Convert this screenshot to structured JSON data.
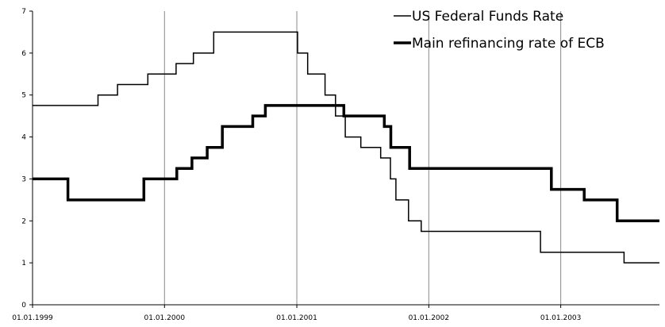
{
  "chart_data": {
    "type": "line",
    "step": true,
    "title": "",
    "xlabel": "",
    "ylabel": "",
    "x_ticks": [
      "01.01.1999",
      "01.01.2000",
      "01.01.2001",
      "01.01.2002",
      "01.01.2003"
    ],
    "y_ticks": [
      "0",
      "1",
      "2",
      "3",
      "4",
      "5",
      "6",
      "7"
    ],
    "ylim": [
      0,
      7
    ],
    "xlim": [
      "1999-01-01",
      "2003-10-01"
    ],
    "grid": {
      "vertical": true,
      "horizontal": false
    },
    "legend_position": "top-right",
    "series": [
      {
        "name": "US Federal Funds Rate",
        "line_width": "thin",
        "color": "#000000",
        "points": [
          [
            "1999-01-01",
            4.75
          ],
          [
            "1999-07-01",
            5.0
          ],
          [
            "1999-08-24",
            5.25
          ],
          [
            "1999-11-16",
            5.5
          ],
          [
            "2000-02-02",
            5.75
          ],
          [
            "2000-03-21",
            6.0
          ],
          [
            "2000-05-16",
            6.5
          ],
          [
            "2001-01-03",
            6.0
          ],
          [
            "2001-01-31",
            5.5
          ],
          [
            "2001-03-20",
            5.0
          ],
          [
            "2001-04-18",
            4.5
          ],
          [
            "2001-05-15",
            4.0
          ],
          [
            "2001-06-27",
            3.75
          ],
          [
            "2001-08-21",
            3.5
          ],
          [
            "2001-09-17",
            3.0
          ],
          [
            "2001-10-02",
            2.5
          ],
          [
            "2001-11-06",
            2.0
          ],
          [
            "2001-12-11",
            1.75
          ],
          [
            "2002-11-06",
            1.25
          ],
          [
            "2003-06-25",
            1.0
          ],
          [
            "2003-10-01",
            1.0
          ]
        ]
      },
      {
        "name": "Main refinancing rate of ECB",
        "line_width": "thick",
        "color": "#000000",
        "points": [
          [
            "1999-01-01",
            3.0
          ],
          [
            "1999-04-09",
            2.5
          ],
          [
            "1999-11-05",
            3.0
          ],
          [
            "2000-02-04",
            3.25
          ],
          [
            "2000-03-17",
            3.5
          ],
          [
            "2000-04-28",
            3.75
          ],
          [
            "2000-06-09",
            4.25
          ],
          [
            "2000-09-01",
            4.5
          ],
          [
            "2000-10-06",
            4.75
          ],
          [
            "2001-05-11",
            4.5
          ],
          [
            "2001-08-31",
            4.25
          ],
          [
            "2001-09-18",
            3.75
          ],
          [
            "2001-11-09",
            3.25
          ],
          [
            "2002-12-06",
            2.75
          ],
          [
            "2003-03-07",
            2.5
          ],
          [
            "2003-06-06",
            2.0
          ],
          [
            "2003-10-01",
            2.0
          ]
        ]
      }
    ]
  }
}
